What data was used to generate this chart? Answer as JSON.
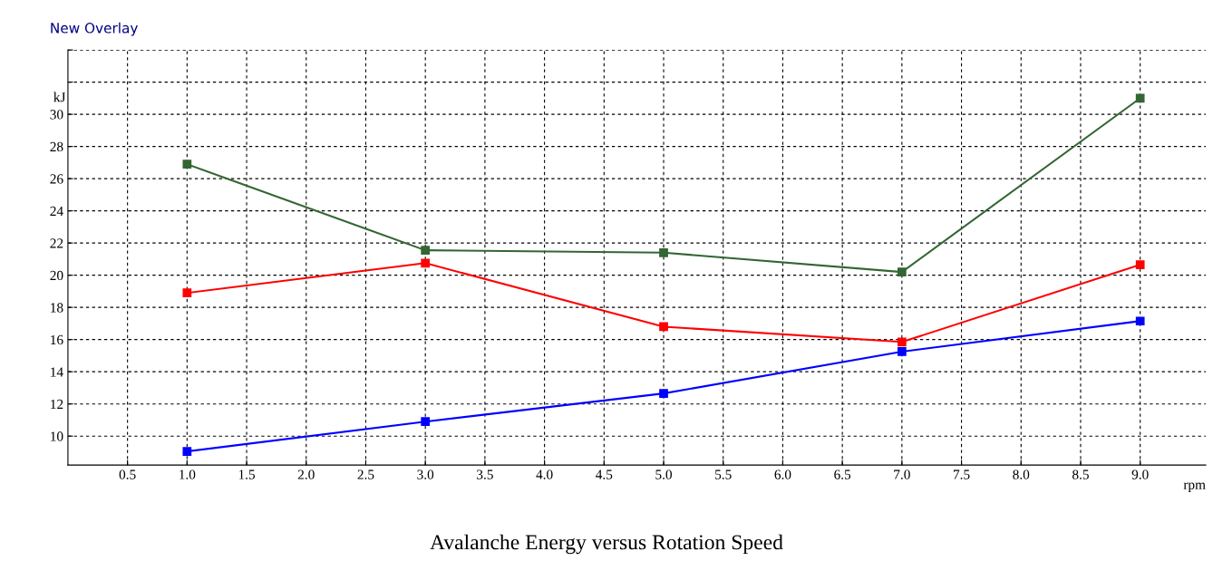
{
  "chart_data": {
    "type": "line",
    "title": "Avalanche Energy versus Rotation Speed",
    "subtitle": "New Overlay",
    "xlabel": "rpm",
    "ylabel": "kJ",
    "x": [
      1.0,
      3.0,
      5.0,
      7.0,
      9.0
    ],
    "series": [
      {
        "color": "#336633",
        "values": [
          26.9,
          21.55,
          21.4,
          20.2,
          31.0
        ]
      },
      {
        "color": "#ff0000",
        "values": [
          18.9,
          20.75,
          16.8,
          15.85,
          20.65
        ]
      },
      {
        "color": "#0000ff",
        "values": [
          9.05,
          10.9,
          12.65,
          15.25,
          17.15
        ]
      }
    ],
    "xlim": [
      0,
      9.55
    ],
    "xticks": [
      {
        "value": 0.5,
        "label": "0.5"
      },
      {
        "value": 1.0,
        "label": "1.0"
      },
      {
        "value": 1.5,
        "label": "1.5"
      },
      {
        "value": 2.0,
        "label": "2.0"
      },
      {
        "value": 2.5,
        "label": "2.5"
      },
      {
        "value": 3.0,
        "label": "3.0"
      },
      {
        "value": 3.5,
        "label": "3.5"
      },
      {
        "value": 4.0,
        "label": "4.0"
      },
      {
        "value": 4.5,
        "label": "4.5"
      },
      {
        "value": 5.0,
        "label": "5.0"
      },
      {
        "value": 5.5,
        "label": "5.5"
      },
      {
        "value": 6.0,
        "label": "6.0"
      },
      {
        "value": 6.5,
        "label": "6.5"
      },
      {
        "value": 7.0,
        "label": "7.0"
      },
      {
        "value": 7.5,
        "label": "7.5"
      },
      {
        "value": 8.0,
        "label": "8.0"
      },
      {
        "value": 8.5,
        "label": "8.5"
      },
      {
        "value": 9.0,
        "label": "9.0"
      }
    ],
    "ylim": [
      8.2,
      34
    ],
    "yticks": [
      10,
      12,
      14,
      16,
      18,
      20,
      22,
      24,
      26,
      28,
      30,
      {
        "value": 32,
        "label": null
      },
      {
        "value": 34,
        "label": null
      }
    ],
    "grid": true,
    "marker": "square",
    "line_style": "solid",
    "legend": false
  }
}
